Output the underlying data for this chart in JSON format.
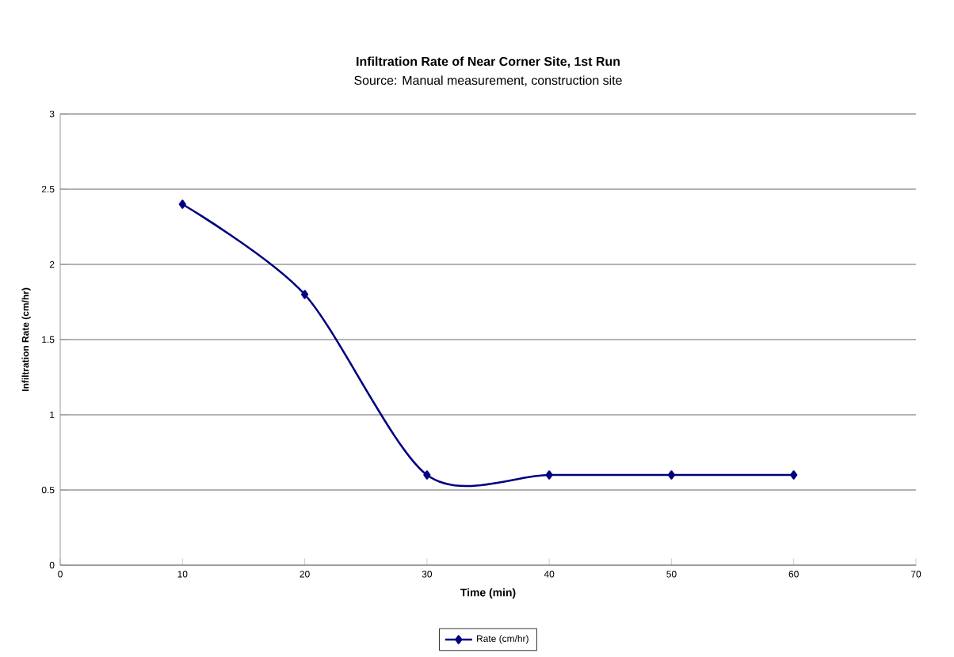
{
  "chart_data": {
    "type": "line",
    "title": "Infiltration Rate of Near Corner Site, 1st Run",
    "subtitle": "Source: Manual measurement, construction site",
    "xlabel": "Time (min)",
    "ylabel": "Infiltration Rate (cm/hr)",
    "x": [
      10,
      20,
      30,
      40,
      50,
      60
    ],
    "series": [
      {
        "name": "Rate (cm/hr)",
        "color": "#000080",
        "values": [
          2.4,
          1.8,
          0.6,
          0.6,
          0.6,
          0.6
        ]
      }
    ],
    "xlim": [
      0,
      70
    ],
    "xticks": [
      0,
      10,
      20,
      30,
      40,
      50,
      60,
      70
    ],
    "ylim": [
      0,
      3
    ],
    "yticks": [
      0,
      0.5,
      1,
      1.5,
      2,
      2.5,
      3
    ],
    "grid": "y",
    "legend": "bottom",
    "marker": "diamond",
    "line_style": "solid"
  }
}
